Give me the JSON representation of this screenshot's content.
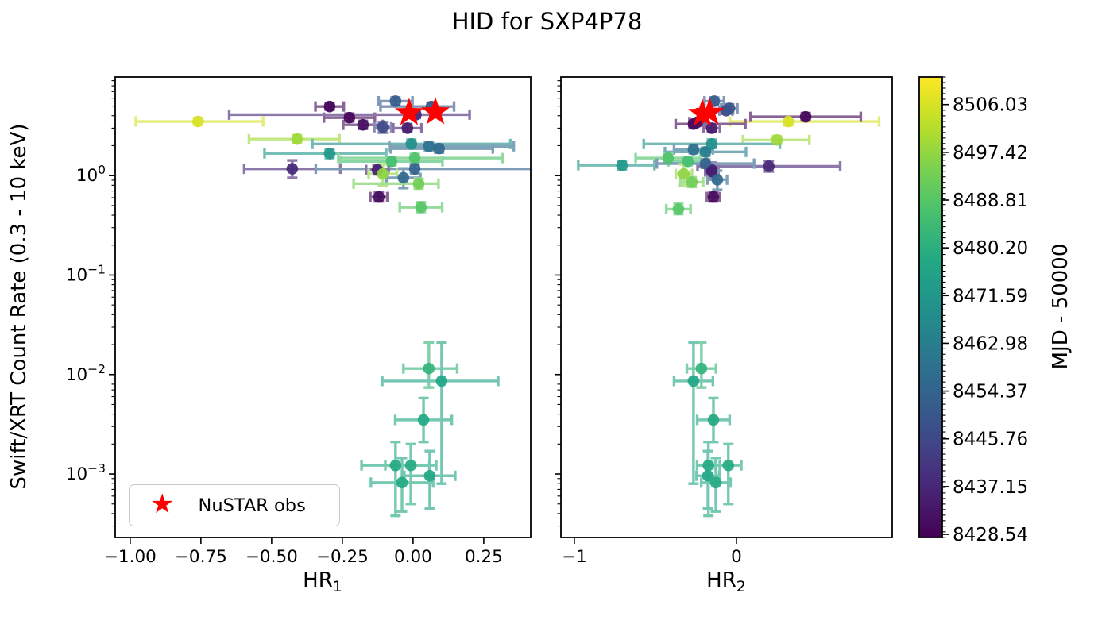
{
  "chart_data": {
    "type": "scatter",
    "title": "HID for SXP4P78",
    "ylabel": "Swift/XRT Count Rate (0.3 - 10 keV)",
    "yscale": "log",
    "ylim": [
      0.00023,
      9.8
    ],
    "ytick_base": "10",
    "yticks": [
      {
        "v": 1,
        "exp": "0"
      },
      {
        "v": 0.1,
        "exp": "−1"
      },
      {
        "v": 0.01,
        "exp": "−2"
      },
      {
        "v": 0.001,
        "exp": "−3"
      }
    ],
    "legend": {
      "label": "NuSTAR obs",
      "marker": "star",
      "color": "#ff0000"
    },
    "colorbar": {
      "label": "MJD - 50000",
      "cmap": "viridis",
      "vmin": 8427.97,
      "vmax": 8511.0,
      "ticks": [
        8506.03,
        8497.42,
        8488.81,
        8480.2,
        8471.59,
        8462.98,
        8454.37,
        8445.76,
        8437.15,
        8428.54
      ]
    },
    "point_format": [
      "hr",
      "hr_err_minus",
      "hr_err_plus",
      "rate",
      "rate_lo",
      "rate_hi",
      "mjd"
    ],
    "panels": [
      {
        "xlabel_base": "HR",
        "xlabel_sub": "1",
        "xlim": [
          -1.053,
          0.416
        ],
        "xticks": [
          {
            "v": -1.0,
            "label": "−1.00"
          },
          {
            "v": -0.75,
            "label": "−0.75"
          },
          {
            "v": -0.5,
            "label": "−0.50"
          },
          {
            "v": -0.25,
            "label": "−0.25"
          },
          {
            "v": 0.0,
            "label": "0.00"
          },
          {
            "v": 0.25,
            "label": "0.25"
          }
        ],
        "stars": [
          [
            -0.014,
            4.27
          ],
          [
            0.079,
            4.35
          ]
        ],
        "points": [
          [
            -0.76,
            0.22,
            0.23,
            3.5,
            3.25,
            3.8,
            8506
          ],
          [
            -0.41,
            0.17,
            0.15,
            2.33,
            2.15,
            2.55,
            8499
          ],
          [
            -0.295,
            0.05,
            0.05,
            4.95,
            4.6,
            5.3,
            8429
          ],
          [
            -0.225,
            0.09,
            0.09,
            3.83,
            3.5,
            4.2,
            8429
          ],
          [
            -0.177,
            0.07,
            0.07,
            3.24,
            2.95,
            3.55,
            8431
          ],
          [
            -0.107,
            0.03,
            0.03,
            3.06,
            2.7,
            3.45,
            8446
          ],
          [
            -0.062,
            0.06,
            0.06,
            5.6,
            5.1,
            6.1,
            8452
          ],
          [
            0.065,
            0.18,
            0.08,
            4.95,
            4.5,
            5.4,
            8450
          ],
          [
            0.01,
            0.66,
            0.19,
            4.1,
            3.8,
            4.45,
            8437
          ],
          [
            -0.02,
            0.05,
            0.05,
            3.0,
            2.75,
            3.3,
            8434
          ],
          [
            -0.006,
            0.35,
            0.35,
            2.08,
            1.9,
            2.3,
            8469
          ],
          [
            0.056,
            0.14,
            0.3,
            1.97,
            1.8,
            2.15,
            8459
          ],
          [
            0.092,
            0.17,
            0.19,
            1.87,
            1.7,
            2.05,
            8456
          ],
          [
            -0.295,
            0.23,
            0.2,
            1.67,
            1.5,
            1.85,
            8472
          ],
          [
            0.006,
            0.27,
            0.31,
            1.5,
            1.37,
            1.65,
            8488
          ],
          [
            -0.076,
            0.18,
            0.18,
            1.39,
            1.27,
            1.52,
            8486
          ],
          [
            -0.427,
            0.17,
            0.17,
            1.17,
            0.95,
            1.42,
            8437
          ],
          [
            0.006,
            0.35,
            0.42,
            1.17,
            1.05,
            1.3,
            8454
          ],
          [
            -0.126,
            0.04,
            0.04,
            1.14,
            1.03,
            1.26,
            8435
          ],
          [
            -0.107,
            0.05,
            0.05,
            1.04,
            0.8,
            1.3,
            8497
          ],
          [
            -0.034,
            0.06,
            0.06,
            0.95,
            0.75,
            1.18,
            8456
          ],
          [
            0.02,
            0.23,
            0.07,
            0.83,
            0.74,
            0.93,
            8493
          ],
          [
            -0.121,
            0.03,
            0.03,
            0.61,
            0.55,
            0.68,
            8430
          ],
          [
            0.028,
            0.075,
            0.075,
            0.48,
            0.43,
            0.54,
            8489
          ],
          [
            0.056,
            0.09,
            0.1,
            0.0115,
            0.0074,
            0.021,
            8482
          ],
          [
            0.101,
            0.21,
            0.2,
            0.0086,
            0.0008,
            0.021,
            8477
          ],
          [
            0.037,
            0.1,
            0.1,
            0.0035,
            0.0021,
            0.0058,
            8478
          ],
          [
            -0.062,
            0.12,
            0.12,
            0.00122,
            0.00038,
            0.0021,
            8478
          ],
          [
            -0.008,
            0.09,
            0.09,
            0.00122,
            0.0005,
            0.002,
            8479
          ],
          [
            0.059,
            0.09,
            0.09,
            0.00096,
            0.00045,
            0.0017,
            8477
          ],
          [
            -0.039,
            0.11,
            0.11,
            0.00082,
            0.00042,
            0.00145,
            8478
          ]
        ]
      },
      {
        "xlabel_base": "HR",
        "xlabel_sub": "2",
        "xlim": [
          -1.083,
          0.961
        ],
        "xticks": [
          {
            "v": -1.0,
            "label": "−1"
          },
          {
            "v": 0.0,
            "label": "0"
          }
        ],
        "stars": [
          [
            -0.21,
            4.2
          ],
          [
            -0.165,
            4.3
          ]
        ],
        "points": [
          [
            0.32,
            0.36,
            0.56,
            3.5,
            3.2,
            3.85,
            8506
          ],
          [
            0.25,
            0.21,
            0.2,
            2.28,
            2.1,
            2.5,
            8499
          ],
          [
            0.427,
            0.34,
            0.34,
            3.9,
            3.6,
            4.25,
            8429
          ],
          [
            -0.265,
            0.11,
            0.32,
            3.3,
            3.0,
            3.6,
            8429
          ],
          [
            -0.24,
            0.05,
            0.05,
            3.45,
            3.2,
            3.7,
            8431
          ],
          [
            -0.064,
            0.04,
            0.04,
            4.5,
            4.2,
            4.85,
            8446
          ],
          [
            -0.137,
            0.06,
            0.06,
            5.6,
            5.15,
            6.1,
            8452
          ],
          [
            -0.044,
            0.05,
            0.05,
            4.75,
            4.35,
            5.2,
            8450
          ],
          [
            0.2,
            0.44,
            0.44,
            1.24,
            1.1,
            1.4,
            8437
          ],
          [
            -0.152,
            0.05,
            0.05,
            3.0,
            2.75,
            3.3,
            8434
          ],
          [
            -0.152,
            0.42,
            0.42,
            2.08,
            1.9,
            2.3,
            8469
          ],
          [
            -0.265,
            0.12,
            0.12,
            1.83,
            1.68,
            2.0,
            8459
          ],
          [
            -0.191,
            0.25,
            0.25,
            1.73,
            1.58,
            1.9,
            8463
          ],
          [
            -0.706,
            0.27,
            0.2,
            1.27,
            1.15,
            1.4,
            8472
          ],
          [
            -0.422,
            0.2,
            0.2,
            1.5,
            1.37,
            1.65,
            8488
          ],
          [
            -0.3,
            0.12,
            0.12,
            1.39,
            1.27,
            1.52,
            8486
          ],
          [
            -0.152,
            0.04,
            0.04,
            1.14,
            0.95,
            1.35,
            8437
          ],
          [
            -0.191,
            0.3,
            0.3,
            1.32,
            1.2,
            1.45,
            8454
          ],
          [
            -0.152,
            0.04,
            0.04,
            1.1,
            1.0,
            1.22,
            8435
          ],
          [
            -0.324,
            0.05,
            0.05,
            1.04,
            0.8,
            1.3,
            8497
          ],
          [
            -0.118,
            0.06,
            0.06,
            0.91,
            0.72,
            1.12,
            8456
          ],
          [
            -0.275,
            0.07,
            0.07,
            0.86,
            0.77,
            0.96,
            8493
          ],
          [
            -0.142,
            0.04,
            0.04,
            0.61,
            0.55,
            0.68,
            8430
          ],
          [
            -0.358,
            0.075,
            0.075,
            0.46,
            0.41,
            0.52,
            8489
          ],
          [
            -0.216,
            0.09,
            0.09,
            0.0115,
            0.0074,
            0.021,
            8482
          ],
          [
            -0.265,
            0.12,
            0.12,
            0.0086,
            0.0008,
            0.021,
            8477
          ],
          [
            -0.142,
            0.1,
            0.1,
            0.0035,
            0.0021,
            0.0058,
            8478
          ],
          [
            -0.173,
            0.07,
            0.07,
            0.00122,
            0.00038,
            0.0021,
            8478
          ],
          [
            -0.05,
            0.08,
            0.08,
            0.00122,
            0.0005,
            0.002,
            8479
          ],
          [
            -0.176,
            0.07,
            0.07,
            0.00096,
            0.00045,
            0.0017,
            8477
          ],
          [
            -0.127,
            0.09,
            0.09,
            0.00082,
            0.00042,
            0.00145,
            8478
          ]
        ]
      }
    ]
  }
}
